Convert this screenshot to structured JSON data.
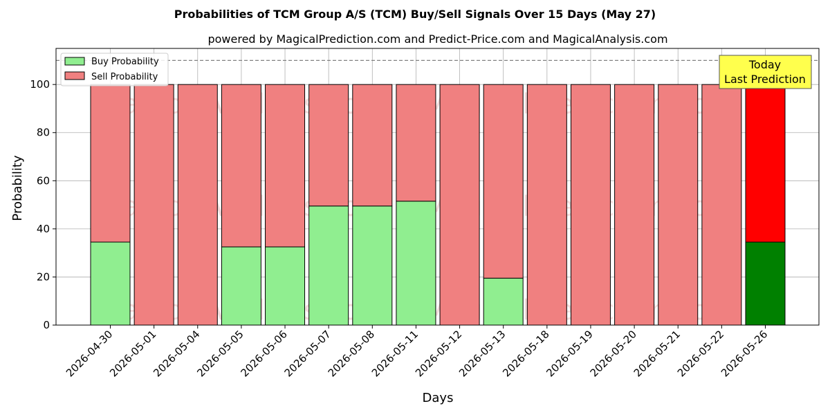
{
  "chart_data": {
    "type": "bar",
    "stacked": true,
    "title": "Probabilities of TCM Group A/S (TCM) Buy/Sell Signals Over 15 Days (May 27)",
    "subtitle": "powered by MagicalPrediction.com and Predict-Price.com and MagicalAnalysis.com",
    "xlabel": "Days",
    "ylabel": "Probability",
    "ylim": [
      0,
      115
    ],
    "yticks": [
      0,
      20,
      40,
      60,
      80,
      100
    ],
    "reference_line": 110,
    "grid": true,
    "legend_position": "top-left",
    "categories": [
      "2026-04-30",
      "2026-05-01",
      "2026-05-04",
      "2026-05-05",
      "2026-05-06",
      "2026-05-07",
      "2026-05-08",
      "2026-05-11",
      "2026-05-12",
      "2026-05-13",
      "2026-05-18",
      "2026-05-19",
      "2026-05-20",
      "2026-05-21",
      "2026-05-22",
      "2026-05-26"
    ],
    "series": [
      {
        "name": "Buy Probability",
        "color": "#90ee90",
        "highlight_color": "#008000",
        "values": [
          34.5,
          0,
          0,
          32.5,
          32.5,
          49.5,
          49.5,
          51.5,
          0,
          19.5,
          0,
          0,
          0,
          0,
          0,
          34.5
        ]
      },
      {
        "name": "Sell Probability",
        "color": "#f08080",
        "highlight_color": "#ff0000",
        "values": [
          65.5,
          100,
          100,
          67.5,
          67.5,
          50.5,
          50.5,
          48.5,
          100,
          80.5,
          100,
          100,
          100,
          100,
          100,
          65.5
        ]
      }
    ],
    "highlight_index": 15,
    "annotation": {
      "lines": [
        "Today",
        "Last Prediction"
      ],
      "color": "#ffff4d"
    },
    "watermarks": [
      "MagicalAnalysis.com",
      "MagicalPrediction.com"
    ]
  }
}
